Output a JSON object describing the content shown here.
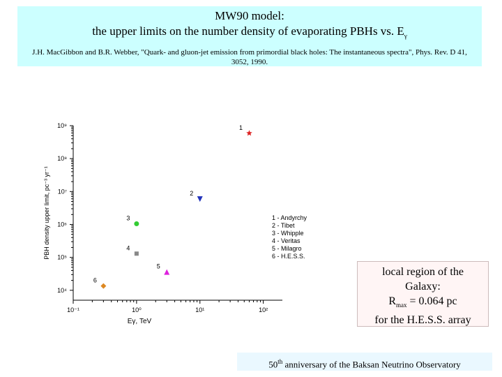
{
  "header": {
    "title": "MW90 model:",
    "subtitle_main": "the upper limits on the number density of evaporating PBHs vs. E",
    "subtitle_sym": "γ",
    "reference": "J.H. MacGibbon and B.R. Webber, \"Quark- and gluon-jet emission from  primordial black holes: The instantaneous spectra\", Phys. Rev. D 41, 3052, 1990."
  },
  "note": {
    "line1": "local region of the",
    "line2": "Galaxy:",
    "rmax_prefix": "R",
    "rmax_sub": "max",
    "rmax_value": " = 0.064 pc",
    "line4": "for the H.E.S.S. array"
  },
  "footer": {
    "ordinal_num": "50",
    "ordinal_sup": "th",
    "text": " anniversary of the Baksan Neutrino Observatory"
  },
  "chart_data": {
    "type": "scatter",
    "xlabel": "Eγ, TeV",
    "ylabel": "PBH density upper limit, pc⁻³ yr⁻¹",
    "x_scale": "log",
    "y_scale": "log",
    "xlim": [
      0.1,
      200
    ],
    "ylim": [
      5000,
      1000000000
    ],
    "x_ticks": [
      "10⁻¹",
      "10⁰",
      "10¹",
      "10²"
    ],
    "y_ticks": [
      "10⁴",
      "10⁵",
      "10⁶",
      "10⁷",
      "10⁸",
      "10⁹"
    ],
    "grid": false,
    "legend_placement": "right",
    "series": [
      {
        "name": "1 - Andyrchy",
        "label": "1",
        "x": 60,
        "y": 590000000,
        "marker": "star",
        "color": "#dd2222"
      },
      {
        "name": "2 - Tibet",
        "label": "2",
        "x": 10,
        "y": 5900000,
        "marker": "triangle-down",
        "color": "#2233bb"
      },
      {
        "name": "3 - Whipple",
        "label": "3",
        "x": 1,
        "y": 1050000,
        "marker": "circle",
        "color": "#33cc33"
      },
      {
        "name": "4 - Veritas",
        "label": "4",
        "x": 1,
        "y": 130000,
        "marker": "square",
        "color": "#888888"
      },
      {
        "name": "5 - Milagro",
        "label": "5",
        "x": 3,
        "y": 36000,
        "marker": "triangle-up",
        "color": "#dd22dd"
      },
      {
        "name": "6 - H.E.S.S.",
        "label": "6",
        "x": 0.3,
        "y": 13500,
        "marker": "diamond",
        "color": "#dd8822"
      }
    ]
  }
}
